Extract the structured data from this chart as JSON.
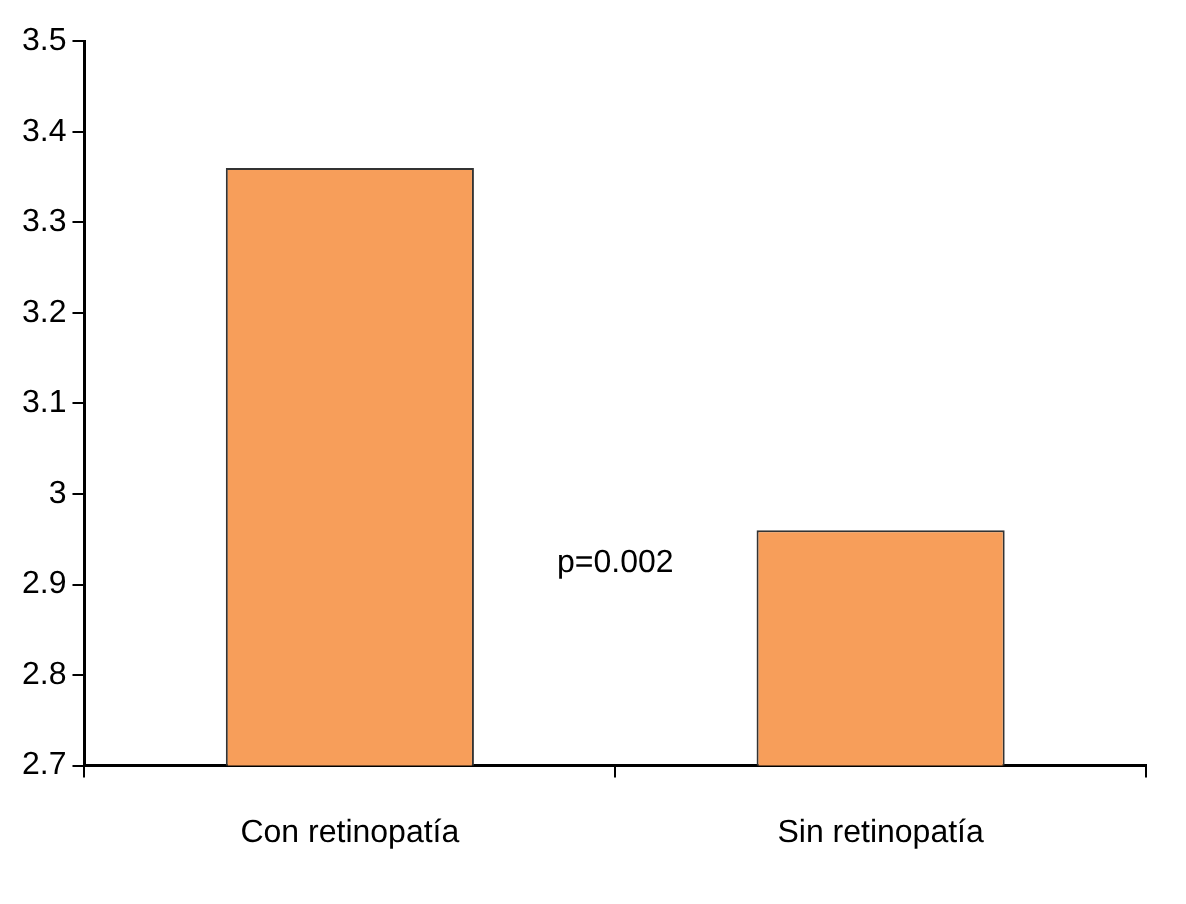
{
  "chart_data": {
    "type": "bar",
    "categories": [
      "Con retinopatía",
      "Sin retinopatía"
    ],
    "values": [
      3.36,
      2.96
    ],
    "color": "#f79e5a",
    "ylim": [
      2.7,
      3.5
    ],
    "yticks": [
      2.7,
      2.8,
      2.9,
      3,
      3.1,
      3.2,
      3.3,
      3.4,
      3.5
    ],
    "grid": false,
    "annotations": [
      "p=0.002"
    ]
  }
}
